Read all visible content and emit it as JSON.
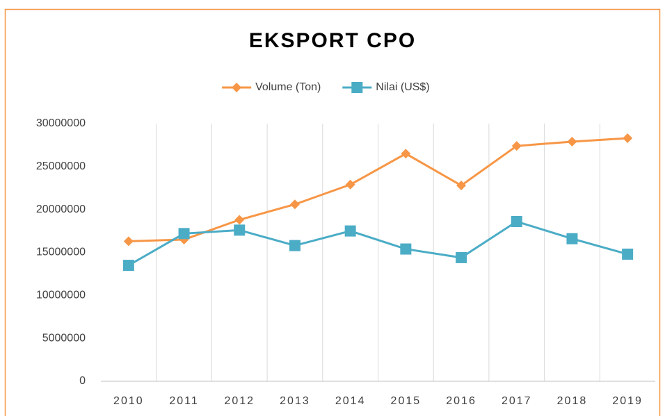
{
  "chart_data": {
    "type": "line",
    "title": "EKSPORT CPO",
    "categories": [
      "2010",
      "2011",
      "2012",
      "2013",
      "2014",
      "2015",
      "2016",
      "2017",
      "2018",
      "2019"
    ],
    "series": [
      {
        "name": "Volume (Ton)",
        "color": "#f79646",
        "marker": "diamond",
        "values": [
          16300000,
          16500000,
          18800000,
          20600000,
          22900000,
          26500000,
          22800000,
          27400000,
          27900000,
          28300000
        ]
      },
      {
        "name": "Nilai (US$)",
        "color": "#4bacc6",
        "marker": "square",
        "values": [
          13500000,
          17200000,
          17600000,
          15800000,
          17500000,
          15400000,
          14400000,
          18600000,
          16600000,
          14800000
        ]
      }
    ],
    "ylim": [
      0,
      30000000
    ],
    "yticks": [
      0,
      5000000,
      10000000,
      15000000,
      20000000,
      25000000,
      30000000
    ],
    "grid": true,
    "legend": "top"
  }
}
